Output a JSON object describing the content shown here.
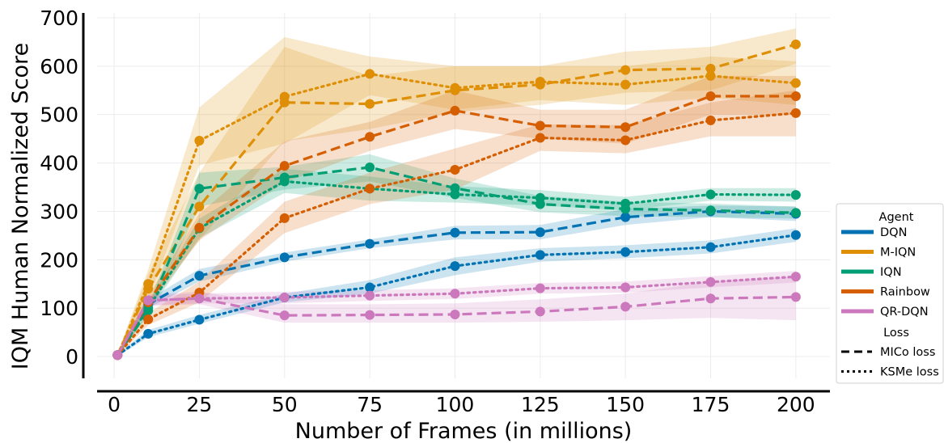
{
  "chart_data": {
    "type": "line",
    "title": "",
    "xlabel": "Number of Frames (in millions)",
    "ylabel": "IQM Human Normalized Score",
    "xlim": [
      -5,
      210
    ],
    "ylim": [
      -45,
      710
    ],
    "xticks": [
      0,
      25,
      50,
      75,
      100,
      125,
      150,
      175,
      200
    ],
    "yticks": [
      0,
      100,
      200,
      300,
      400,
      500,
      600,
      700
    ],
    "grid": true,
    "legend_position": "right",
    "x": [
      1,
      10,
      25,
      50,
      75,
      100,
      125,
      150,
      175,
      200
    ],
    "legend": {
      "agent_title": "Agent",
      "loss_title": "Loss",
      "agents": [
        {
          "name": "DQN",
          "color": "#0173b2"
        },
        {
          "name": "M-IQN",
          "color": "#de8f05"
        },
        {
          "name": "IQN",
          "color": "#029e73"
        },
        {
          "name": "Rainbow",
          "color": "#d55e00"
        },
        {
          "name": "QR-DQN",
          "color": "#cc78bc"
        }
      ],
      "losses": [
        {
          "name": "MICo loss",
          "style": "dashed"
        },
        {
          "name": "KSMe loss",
          "style": "dotted"
        }
      ]
    },
    "series": [
      {
        "agent": "DQN",
        "loss": "MICo loss",
        "values": [
          3,
          108,
          167,
          205,
          233,
          256,
          257,
          288,
          300,
          295
        ],
        "lower": [
          0,
          100,
          155,
          196,
          224,
          242,
          242,
          272,
          288,
          280
        ],
        "upper": [
          6,
          118,
          181,
          215,
          242,
          270,
          272,
          305,
          312,
          310
        ]
      },
      {
        "agent": "DQN",
        "loss": "KSMe loss",
        "values": [
          3,
          47,
          76,
          122,
          143,
          187,
          210,
          216,
          226,
          251
        ],
        "lower": [
          0,
          40,
          68,
          112,
          130,
          168,
          196,
          203,
          213,
          237
        ],
        "upper": [
          6,
          55,
          86,
          130,
          158,
          205,
          224,
          230,
          240,
          265
        ]
      },
      {
        "agent": "M-IQN",
        "loss": "MICo loss",
        "values": [
          3,
          140,
          310,
          525,
          522,
          550,
          562,
          592,
          595,
          645
        ],
        "lower": [
          0,
          110,
          240,
          445,
          470,
          505,
          520,
          545,
          550,
          605
        ],
        "upper": [
          6,
          170,
          380,
          640,
          580,
          600,
          600,
          630,
          640,
          678
        ]
      },
      {
        "agent": "M-IQN",
        "loss": "KSMe loss",
        "values": [
          3,
          150,
          446,
          537,
          584,
          555,
          568,
          562,
          580,
          565
        ],
        "lower": [
          0,
          120,
          395,
          440,
          540,
          510,
          530,
          520,
          535,
          520
        ],
        "upper": [
          6,
          180,
          515,
          660,
          620,
          600,
          600,
          600,
          620,
          610
        ]
      },
      {
        "agent": "IQN",
        "loss": "MICo loss",
        "values": [
          3,
          95,
          347,
          370,
          391,
          348,
          315,
          305,
          302,
          297
        ],
        "lower": [
          0,
          85,
          310,
          345,
          362,
          328,
          298,
          290,
          288,
          285
        ],
        "upper": [
          6,
          105,
          380,
          392,
          418,
          368,
          332,
          320,
          316,
          310
        ]
      },
      {
        "agent": "IQN",
        "loss": "KSMe loss",
        "values": [
          3,
          100,
          265,
          362,
          347,
          335,
          328,
          316,
          335,
          334
        ],
        "lower": [
          0,
          90,
          245,
          338,
          322,
          318,
          312,
          302,
          322,
          320
        ],
        "upper": [
          6,
          110,
          285,
          388,
          372,
          352,
          344,
          330,
          348,
          348
        ]
      },
      {
        "agent": "Rainbow",
        "loss": "MICo loss",
        "values": [
          3,
          112,
          266,
          394,
          454,
          508,
          477,
          474,
          538,
          538
        ],
        "lower": [
          0,
          100,
          240,
          360,
          425,
          470,
          450,
          440,
          500,
          500
        ],
        "upper": [
          6,
          125,
          295,
          445,
          485,
          550,
          510,
          510,
          580,
          580
        ]
      },
      {
        "agent": "Rainbow",
        "loss": "KSMe loss",
        "values": [
          3,
          77,
          132,
          286,
          347,
          386,
          452,
          447,
          488,
          503
        ],
        "lower": [
          0,
          65,
          112,
          255,
          315,
          345,
          425,
          420,
          455,
          455
        ],
        "upper": [
          6,
          90,
          155,
          320,
          380,
          430,
          480,
          478,
          525,
          550
        ]
      },
      {
        "agent": "QR-DQN",
        "loss": "MICo loss",
        "values": [
          3,
          116,
          120,
          85,
          86,
          87,
          93,
          103,
          120,
          123
        ],
        "lower": [
          0,
          105,
          108,
          70,
          70,
          70,
          72,
          75,
          80,
          75
        ],
        "upper": [
          6,
          128,
          134,
          108,
          108,
          110,
          118,
          130,
          155,
          165
        ]
      },
      {
        "agent": "QR-DQN",
        "loss": "KSMe loss",
        "values": [
          3,
          116,
          120,
          122,
          126,
          130,
          141,
          143,
          154,
          165
        ],
        "lower": [
          0,
          106,
          110,
          110,
          115,
          119,
          130,
          132,
          143,
          153
        ],
        "upper": [
          6,
          126,
          130,
          134,
          137,
          141,
          152,
          155,
          166,
          177
        ]
      }
    ]
  }
}
